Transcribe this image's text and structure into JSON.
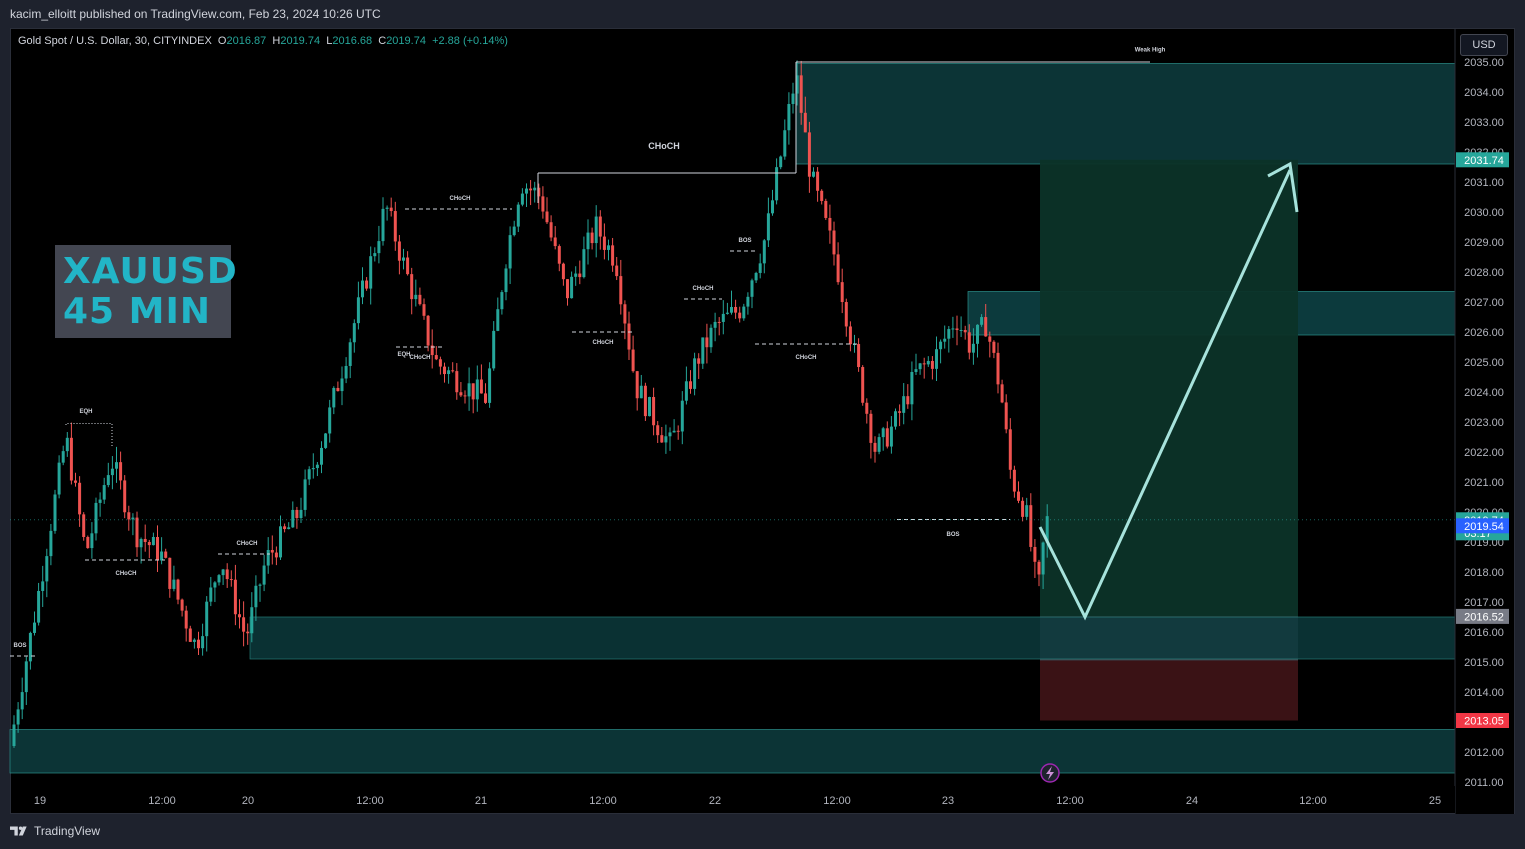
{
  "header": {
    "publisher_line": "kacim_elloitt published on TradingView.com, Feb 23, 2024 10:26 UTC"
  },
  "legend": {
    "symbol": "Gold Spot / U.S. Dollar, 30, CITYINDEX",
    "o_label": "O",
    "o_value": "2016.87",
    "h_label": "H",
    "h_value": "2019.74",
    "l_label": "L",
    "l_value": "2016.68",
    "c_label": "C",
    "c_value": "2019.74",
    "change": "+2.88 (+0.14%)"
  },
  "currency_button": "USD",
  "overlay_text": {
    "line1": "XAUUSD",
    "line2": "45 MIN"
  },
  "footer": {
    "brand": "TradingView"
  },
  "colors": {
    "up": "#26a69a",
    "down": "#ef5350",
    "zone": "#0e3a3d",
    "zone_border": "#2b8f8a",
    "arrow": "#a7e3dc",
    "target_green": "#0c3328",
    "stop_red": "#3a1215"
  },
  "chart_data": {
    "type": "candlestick",
    "y_axis": {
      "min": 2011,
      "max": 2035,
      "side": "right",
      "ticks": [
        "2035.00",
        "2034.00",
        "2033.00",
        "2032.00",
        "2031.00",
        "2030.00",
        "2029.00",
        "2028.00",
        "2027.00",
        "2026.00",
        "2025.00",
        "2024.00",
        "2023.00",
        "2022.00",
        "2021.00",
        "2020.00",
        "2019.00",
        "2018.00",
        "2017.00",
        "2016.00",
        "2015.00",
        "2014.00",
        "2013.00",
        "2012.00",
        "2011.00"
      ]
    },
    "x_axis": {
      "ticks": [
        "19",
        "12:00",
        "20",
        "12:00",
        "21",
        "12:00",
        "22",
        "12:00",
        "23",
        "12:00",
        "24",
        "12:00",
        "25"
      ]
    },
    "price_labels": [
      {
        "text": "2031.74",
        "value": 2031.74,
        "color": "#26a69a"
      },
      {
        "text": "2019.74",
        "sub": "03:17",
        "value": 2019.74,
        "color": "#26a69a"
      },
      {
        "text": "2019.54",
        "value": 2019.54,
        "color": "#2962ff"
      },
      {
        "text": "2016.52",
        "value": 2016.52,
        "color": "#787b86"
      },
      {
        "text": "2013.05",
        "value": 2013.05,
        "color": "#f23645"
      }
    ],
    "annotations": [
      "Weak High",
      "CHoCH",
      "CHoCH",
      "BOS",
      "CHoCH",
      "CHoCH",
      "EQH",
      "CHoCH",
      "EQH",
      "CHoCH",
      "CHoCH",
      "CHoCH",
      "BOS",
      "BOS"
    ],
    "last_price": 2019.74
  }
}
